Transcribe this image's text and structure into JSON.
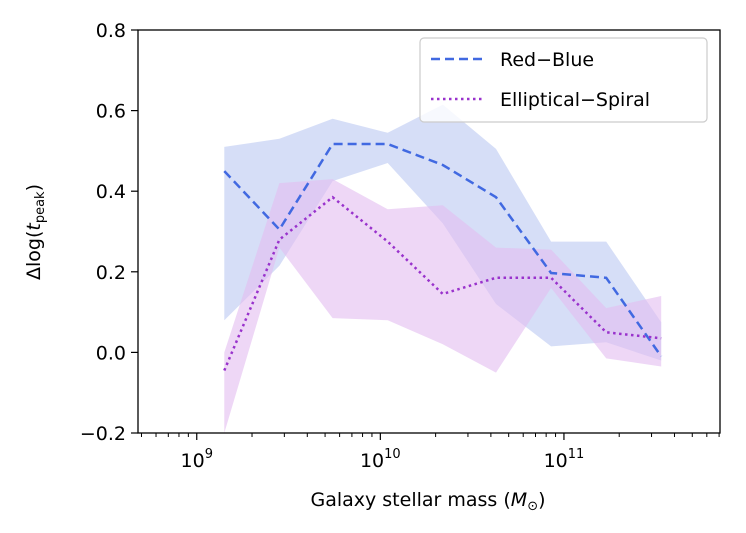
{
  "chart_data": {
    "type": "line",
    "xscale": "log",
    "xlim_log10": [
      8.68,
      11.85
    ],
    "ylim": [
      -0.2,
      0.8
    ],
    "x_ticks": [
      {
        "log": 9,
        "label_base": "10",
        "label_exp": "9"
      },
      {
        "log": 10,
        "label_base": "10",
        "label_exp": "10"
      },
      {
        "log": 11,
        "label_base": "10",
        "label_exp": "11"
      }
    ],
    "y_ticks": [
      {
        "value": -0.2,
        "label": "−0.2"
      },
      {
        "value": 0.0,
        "label": "0.0"
      },
      {
        "value": 0.2,
        "label": "0.2"
      },
      {
        "value": 0.4,
        "label": "0.4"
      },
      {
        "value": 0.6,
        "label": "0.6"
      },
      {
        "value": 0.8,
        "label": "0.8"
      }
    ],
    "xlabel": {
      "text": "Galaxy stellar mass (",
      "symbol": "M",
      "subscript": "⊙",
      "close": ")"
    },
    "ylabel": {
      "prefix": "Δlog(",
      "symbol": "t",
      "subscript": "peak",
      "close": ")"
    },
    "x_log10": [
      9.15,
      9.45,
      9.74,
      10.04,
      10.34,
      10.63,
      10.93,
      11.23,
      11.53
    ],
    "series": [
      {
        "name": "Red−Blue",
        "color": "#4169e1",
        "dash": "dashed",
        "values": [
          0.45,
          0.305,
          0.517,
          0.517,
          0.465,
          0.385,
          0.197,
          0.185,
          -0.01
        ],
        "band_upper": [
          0.51,
          0.53,
          0.58,
          0.545,
          0.615,
          0.505,
          0.275,
          0.275,
          0.075
        ],
        "band_lower": [
          0.08,
          0.215,
          0.425,
          0.47,
          0.32,
          0.12,
          0.015,
          0.025,
          -0.02
        ],
        "fill_color": "#bac8f1",
        "fill_opacity": 0.6
      },
      {
        "name": "Elliptical−Spiral",
        "color": "#9932cc",
        "dash": "dotted",
        "values": [
          -0.045,
          0.28,
          0.385,
          0.275,
          0.145,
          0.185,
          0.185,
          0.05,
          0.035
        ],
        "band_upper": [
          0.0,
          0.42,
          0.43,
          0.355,
          0.365,
          0.26,
          0.255,
          0.11,
          0.14
        ],
        "band_lower": [
          -0.2,
          0.26,
          0.085,
          0.08,
          0.02,
          -0.05,
          0.16,
          -0.015,
          -0.035
        ],
        "fill_color": "#e2bdf0",
        "fill_opacity": 0.6
      }
    ],
    "legend": {
      "position": "top-right"
    }
  }
}
